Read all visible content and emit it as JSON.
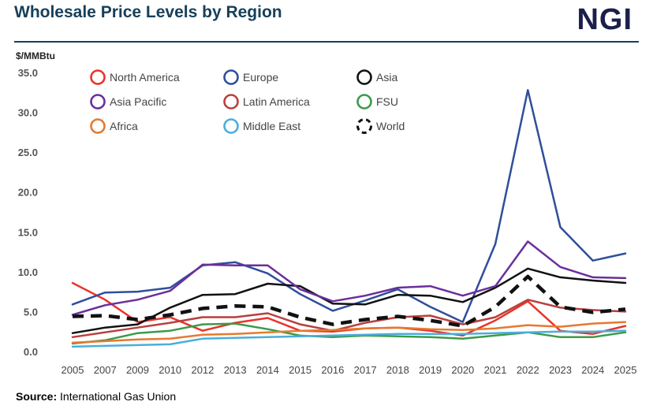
{
  "header": {
    "title": "Wholesale Price Levels by Region",
    "logo": "NGI"
  },
  "footer": {
    "source_label": "Source:",
    "source_text": "International Gas Union"
  },
  "chart_data": {
    "type": "line",
    "title": "Wholesale Price Levels by Region",
    "ylabel": "$/MMBtu",
    "xlabel": "",
    "ylim": [
      0,
      35
    ],
    "yticks": [
      "0.0",
      "5.0",
      "10.0",
      "15.0",
      "20.0",
      "25.0",
      "30.0",
      "35.0"
    ],
    "ytick_values": [
      0,
      5,
      10,
      15,
      20,
      25,
      30,
      35
    ],
    "x": [
      "2005",
      "2007",
      "2009",
      "2010",
      "2012",
      "2013",
      "2014",
      "2015",
      "2016",
      "2017",
      "2018",
      "2019",
      "2020",
      "2021",
      "2022",
      "2023",
      "2024",
      "2025"
    ],
    "legend_position": "top-left",
    "grid": false,
    "series": [
      {
        "name": "North America",
        "color": "#e8342a",
        "dashed": false,
        "width": 2.5,
        "values": [
          8.6,
          6.5,
          3.7,
          4.3,
          2.6,
          3.6,
          4.2,
          2.6,
          2.5,
          2.9,
          3.0,
          2.6,
          2.0,
          3.9,
          6.3,
          2.6,
          2.2,
          3.2
        ]
      },
      {
        "name": "Europe",
        "color": "#2e4f9a",
        "dashed": false,
        "width": 2.5,
        "values": [
          5.9,
          7.4,
          7.5,
          8.0,
          10.8,
          11.2,
          9.8,
          7.2,
          5.1,
          6.4,
          7.8,
          5.6,
          3.7,
          13.5,
          32.8,
          15.6,
          11.4,
          12.3
        ]
      },
      {
        "name": "Asia",
        "color": "#111111",
        "dashed": false,
        "width": 2.5,
        "values": [
          2.3,
          3.0,
          3.4,
          5.5,
          7.1,
          7.2,
          8.5,
          8.2,
          6.0,
          5.9,
          7.1,
          7.0,
          6.2,
          8.0,
          10.4,
          9.3,
          8.9,
          8.6
        ]
      },
      {
        "name": "Asia Pacific",
        "color": "#6a2f9b",
        "dashed": false,
        "width": 2.5,
        "values": [
          4.6,
          5.8,
          6.5,
          7.6,
          10.9,
          10.8,
          10.8,
          7.8,
          6.3,
          7.0,
          8.0,
          8.2,
          7.0,
          8.2,
          13.8,
          10.6,
          9.3,
          9.2
        ]
      },
      {
        "name": "Latin America",
        "color": "#b8403f",
        "dashed": false,
        "width": 2.5,
        "values": [
          1.8,
          2.4,
          3.0,
          3.6,
          4.3,
          4.3,
          4.8,
          3.4,
          2.6,
          3.6,
          4.3,
          4.5,
          3.4,
          4.3,
          6.5,
          5.5,
          5.2,
          5.0
        ]
      },
      {
        "name": "FSU",
        "color": "#3c9a47",
        "dashed": false,
        "width": 2.5,
        "values": [
          1.0,
          1.4,
          2.3,
          2.6,
          3.4,
          3.5,
          2.8,
          2.0,
          1.8,
          2.0,
          1.9,
          1.8,
          1.6,
          2.0,
          2.4,
          1.8,
          1.8,
          2.4
        ]
      },
      {
        "name": "Africa",
        "color": "#e47a2f",
        "dashed": false,
        "width": 2.5,
        "values": [
          1.1,
          1.3,
          1.5,
          1.6,
          2.1,
          2.2,
          2.4,
          2.6,
          2.7,
          2.9,
          3.0,
          2.8,
          2.7,
          2.9,
          3.3,
          3.1,
          3.5,
          3.7
        ]
      },
      {
        "name": "Middle East",
        "color": "#4aaedc",
        "dashed": false,
        "width": 2.5,
        "values": [
          0.6,
          0.7,
          0.8,
          0.9,
          1.6,
          1.7,
          1.8,
          1.9,
          2.0,
          2.1,
          2.2,
          2.2,
          2.2,
          2.3,
          2.4,
          2.5,
          2.5,
          2.6
        ]
      },
      {
        "name": "World",
        "color": "#111111",
        "dashed": true,
        "width": 4.5,
        "values": [
          4.4,
          4.5,
          4.0,
          4.6,
          5.4,
          5.7,
          5.6,
          4.3,
          3.4,
          4.0,
          4.4,
          3.9,
          3.2,
          5.6,
          9.4,
          5.6,
          4.9,
          5.3
        ]
      }
    ]
  }
}
